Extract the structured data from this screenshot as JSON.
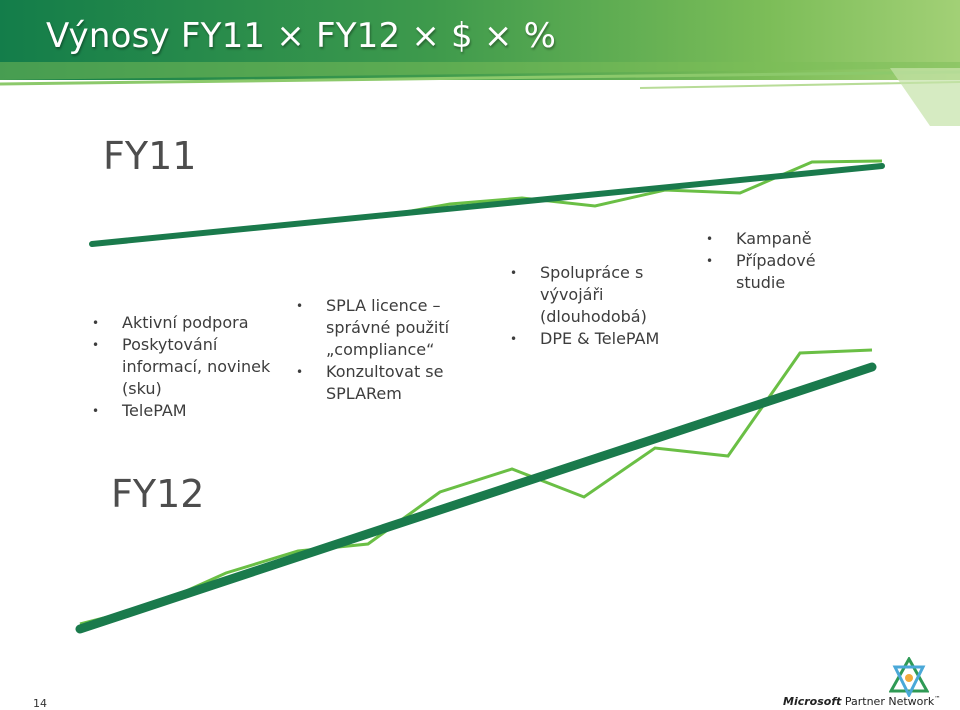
{
  "slide": {
    "title": "Výnosy FY11 × FY12 × $ × %",
    "page_number": "14"
  },
  "labels": {
    "fy11": "FY11",
    "fy12": "FY12"
  },
  "bullet_groups": [
    [
      "Aktivní podpora",
      "Poskytování informací, novinek (sku)",
      "TelePAM"
    ],
    [
      "SPLA licence – správné použití „compliance“",
      "Konzultovat se SPLARem"
    ],
    [
      "Spolupráce s vývojáři (dlouhodobá)",
      "DPE & TelePAM"
    ],
    [
      "Kampaně",
      "Případové studie"
    ]
  ],
  "logo": {
    "brand": "Microsoft",
    "suffix": "Partner Network",
    "trademark": "™"
  },
  "colors": {
    "header_dark": "#137d4a",
    "header_light": "#a2d076",
    "trend_line": "#1a7a4c",
    "actual_line": "#6abf45"
  }
}
